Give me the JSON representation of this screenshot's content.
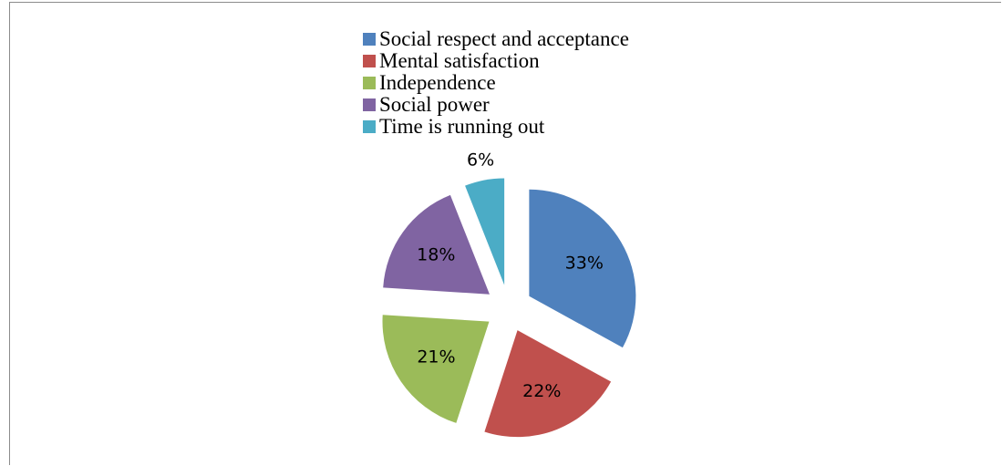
{
  "chart_data": {
    "type": "pie",
    "categories": [
      "Social respect and acceptance",
      "Mental satisfaction",
      "Independence",
      "Social power",
      "Time is running out"
    ],
    "values": [
      33,
      22,
      21,
      18,
      6
    ],
    "data_labels": [
      "33%",
      "22%",
      "21%",
      "18%",
      "6%"
    ],
    "colors": [
      "#4f81bd",
      "#c0504d",
      "#9bbb59",
      "#8064a2",
      "#4bacc6"
    ],
    "exploded": true,
    "legend": "top"
  }
}
